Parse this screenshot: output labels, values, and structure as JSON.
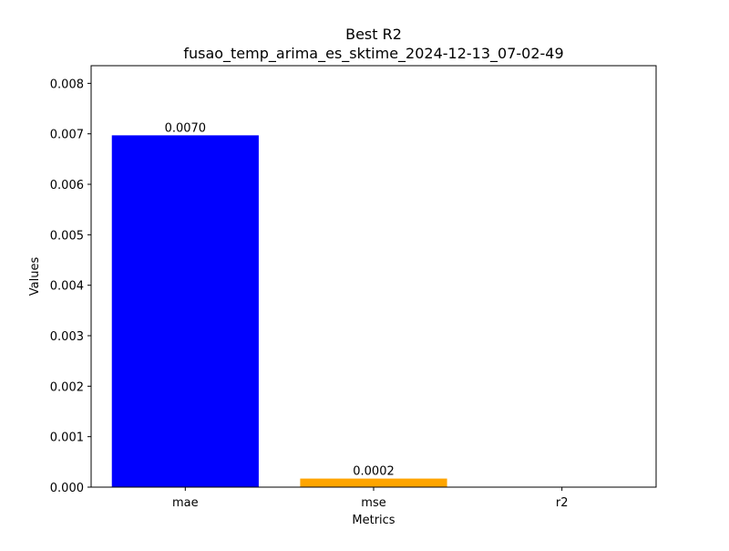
{
  "chart_data": {
    "type": "bar",
    "title": "Best R2",
    "subtitle": "fusao_temp_arima_es_sktime_2024-12-13_07-02-49",
    "xlabel": "Metrics",
    "ylabel": "Values",
    "categories": [
      "mae",
      "mse",
      "r2"
    ],
    "values": [
      0.00697,
      0.00017,
      0.0
    ],
    "data_labels": [
      "0.0070",
      "0.0002",
      ""
    ],
    "colors": [
      "#0000ff",
      "#ffa500",
      "#008000"
    ],
    "ylim": [
      0,
      0.00835
    ],
    "yticks": [
      0.0,
      0.001,
      0.002,
      0.003,
      0.004,
      0.005,
      0.006,
      0.007,
      0.008
    ],
    "ytick_labels": [
      "0.000",
      "0.001",
      "0.002",
      "0.003",
      "0.004",
      "0.005",
      "0.006",
      "0.007",
      "0.008"
    ],
    "grid": false,
    "legend": "none"
  }
}
